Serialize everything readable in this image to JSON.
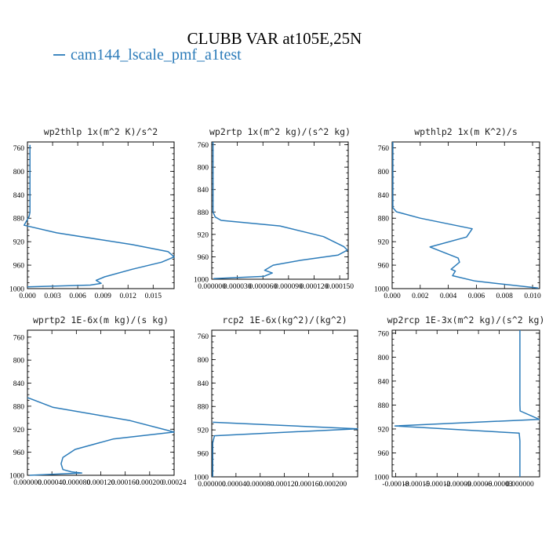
{
  "figure": {
    "title": "CLUBB VAR at105E,25N",
    "legend": {
      "label": "cam144_lscale_pmf_a1test",
      "color": "#2b7bb9"
    }
  },
  "chart_data": [
    {
      "type": "line",
      "title": "wp2thlp  1x(m^2 K)/s^2",
      "ylim": [
        1000,
        750
      ],
      "yticks": [
        760,
        800,
        840,
        880,
        920,
        960,
        1000
      ],
      "xlim": [
        0,
        0.0175
      ],
      "xticks": [
        0,
        0.003,
        0.006,
        0.009,
        0.012,
        0.015
      ],
      "xtick_labels": [
        "0.000",
        "0.003",
        "0.006",
        "0.009",
        "0.012",
        "0.015"
      ],
      "series": [
        {
          "values": [
            [
              0.0003,
              755
            ],
            [
              0.0003,
              800
            ],
            [
              0.0003,
              850
            ],
            [
              0.0003,
              870
            ],
            [
              0.0002,
              877
            ],
            [
              -0.0004,
              892
            ],
            [
              0.0035,
              905
            ],
            [
              0.0125,
              925
            ],
            [
              0.0168,
              937
            ],
            [
              0.0175,
              946
            ],
            [
              0.016,
              955
            ],
            [
              0.0125,
              967
            ],
            [
              0.0092,
              980
            ],
            [
              0.0082,
              986
            ],
            [
              0.0088,
              991
            ],
            [
              0.0075,
              994
            ],
            [
              0.0,
              997
            ]
          ]
        }
      ]
    },
    {
      "type": "line",
      "title": "wp2rtp  1x(m^2 kg)/(s^2 kg)",
      "ylim": [
        1000,
        755
      ],
      "yticks": [
        760,
        800,
        840,
        880,
        920,
        960,
        1000
      ],
      "xlim": [
        0,
        0.00016
      ],
      "xticks": [
        0,
        3e-05,
        6e-05,
        9e-05,
        0.00012,
        0.00015
      ],
      "xtick_labels": [
        "0.000000",
        "0.000030",
        "0.000060",
        "0.000090",
        "0.000120",
        "0.000150"
      ],
      "series": [
        {
          "values": [
            [
              1.5e-06,
              755
            ],
            [
              1.5e-06,
              800
            ],
            [
              1.5e-06,
              850
            ],
            [
              1.5e-06,
              880
            ],
            [
              4e-06,
              889
            ],
            [
              1.1e-05,
              895
            ],
            [
              8e-05,
              905
            ],
            [
              0.000131,
              924
            ],
            [
              0.000155,
              942
            ],
            [
              0.000159,
              948
            ],
            [
              0.000148,
              957
            ],
            [
              0.000105,
              966
            ],
            [
              7.2e-05,
              975
            ],
            [
              6.2e-05,
              984
            ],
            [
              7.1e-05,
              989
            ],
            [
              6.1e-05,
              995
            ],
            [
              2e-06,
              999
            ]
          ]
        }
      ]
    },
    {
      "type": "line",
      "title": "wpthlp2  1x(m K^2)/s",
      "ylim": [
        1000,
        750
      ],
      "yticks": [
        760,
        800,
        840,
        880,
        920,
        960,
        1000
      ],
      "xlim": [
        0,
        0.0105
      ],
      "xticks": [
        0,
        0.002,
        0.004,
        0.006,
        0.008,
        0.01
      ],
      "xtick_labels": [
        "0.000",
        "0.002",
        "0.004",
        "0.006",
        "0.008",
        "0.010"
      ],
      "series": [
        {
          "values": [
            [
              5e-05,
              750
            ],
            [
              5e-05,
              800
            ],
            [
              5e-05,
              840
            ],
            [
              5e-05,
              862
            ],
            [
              0.0003,
              869
            ],
            [
              0.002,
              880
            ],
            [
              0.0057,
              898
            ],
            [
              0.0053,
              912
            ],
            [
              0.0027,
              929
            ],
            [
              0.0047,
              948
            ],
            [
              0.0048,
              955
            ],
            [
              0.0042,
              967
            ],
            [
              0.0045,
              970
            ],
            [
              0.0043,
              978
            ],
            [
              0.0059,
              987
            ],
            [
              0.0104,
              999
            ]
          ]
        }
      ]
    },
    {
      "type": "line",
      "title": "wprtp2  1E-6x(m kg)/(s kg)",
      "ylim": [
        1000,
        748
      ],
      "yticks": [
        760,
        800,
        840,
        880,
        920,
        960,
        1000
      ],
      "xlim": [
        0,
        0.00024
      ],
      "xticks": [
        0,
        4e-05,
        8e-05,
        0.00012,
        0.00016,
        0.0002,
        0.00024
      ],
      "xtick_labels": [
        "0.000000",
        "0.000040",
        "0.000080",
        "0.000120",
        "0.000160",
        "0.000200",
        "0.00024"
      ],
      "series": [
        {
          "values": [
            [
              0.0,
              865
            ],
            [
              4.2e-05,
              882
            ],
            [
              0.000168,
              905
            ],
            [
              0.00024,
              925
            ],
            [
              0.00014,
              937
            ],
            [
              7.8e-05,
              955
            ],
            [
              5.8e-05,
              969
            ],
            [
              5.5e-05,
              980
            ],
            [
              5.8e-05,
              990
            ],
            [
              7.2e-05,
              994
            ],
            [
              8.9e-05,
              996
            ],
            [
              3.5e-06,
              1000
            ]
          ]
        }
      ]
    },
    {
      "type": "line",
      "title": "rcp2  1E-6x(kg^2)/(kg^2)",
      "ylim": [
        1000,
        750
      ],
      "yticks": [
        760,
        800,
        840,
        880,
        920,
        960,
        1000
      ],
      "xlim": [
        0,
        0.000241
      ],
      "xticks": [
        0,
        4e-05,
        8e-05,
        0.00012,
        0.00016,
        0.0002
      ],
      "xtick_labels": [
        "0.000000",
        "0.000040",
        "0.000080",
        "0.000120",
        "0.000160",
        "0.000200"
      ],
      "series": [
        {
          "values": [
            [
              1.5e-06,
              907
            ],
            [
              0.000241,
              918
            ],
            [
              4.5e-06,
              930
            ],
            [
              1.5e-06,
              942
            ],
            [
              1.5e-06,
              1000
            ]
          ]
        }
      ]
    },
    {
      "type": "line",
      "title": "wp2rcp  1E-3x(m^2 kg)/(s^2 kg)",
      "ylim": [
        1000,
        755
      ],
      "yticks": [
        760,
        800,
        840,
        880,
        920,
        960,
        1000
      ],
      "xlim": [
        -0.000185,
        2.85e-05
      ],
      "xticks": [
        -0.00018,
        -0.00015,
        -0.00012,
        -9e-05,
        -6e-05,
        -3e-05,
        0
      ],
      "xtick_labels": [
        "-0.00018",
        "-0.00015",
        "-0.00012",
        "-0.00009",
        "-0.00006",
        "-0.00003",
        "0.000000"
      ],
      "series": [
        {
          "values": [
            [
              0.0,
              755
            ],
            [
              0.0,
              805
            ],
            [
              0.0,
              880
            ],
            [
              3e-07,
              890
            ],
            [
              2.8e-05,
              904
            ],
            [
              -0.000181,
              915
            ],
            [
              -1e-06,
              927
            ],
            [
              0.0,
              940
            ],
            [
              0.0,
              1000
            ]
          ]
        }
      ]
    }
  ]
}
